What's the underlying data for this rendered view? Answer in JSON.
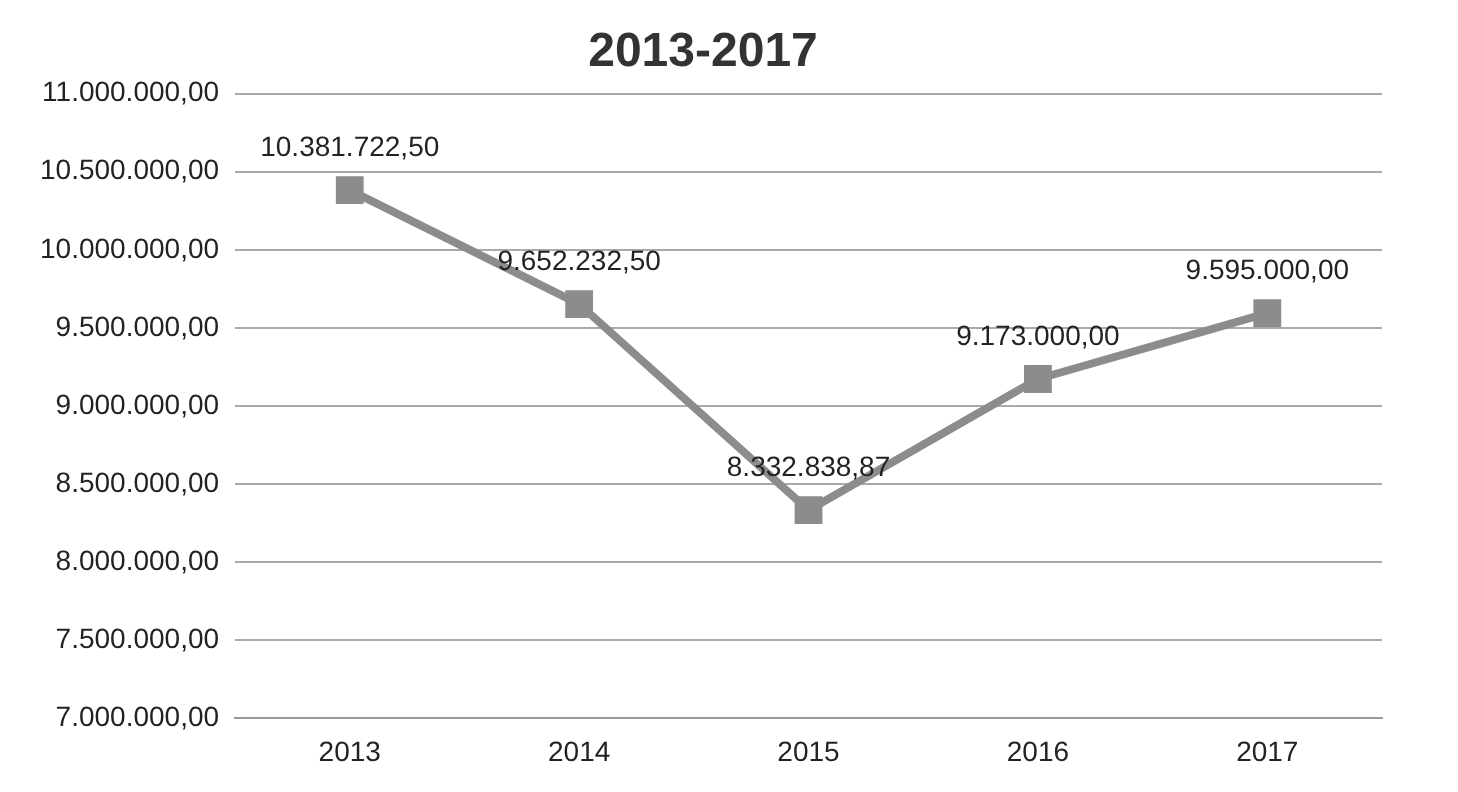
{
  "chart_data": {
    "type": "line",
    "title": "2013-2017",
    "categories": [
      "2013",
      "2014",
      "2015",
      "2016",
      "2017"
    ],
    "series": [
      {
        "color": "#8c8c8c",
        "values": [
          10381722.5,
          9652232.5,
          8332838.87,
          9173000.0,
          9595000.0
        ],
        "value_labels": [
          "10.381.722,50",
          "9.652.232,50",
          "8.332.838,87",
          "9.173.000,00",
          "9.595.000,00"
        ]
      }
    ],
    "ylim": [
      7000000,
      11000000
    ],
    "yticks": [
      {
        "value": 7000000,
        "label": "7.000.000,00"
      },
      {
        "value": 7500000,
        "label": "7.500.000,00"
      },
      {
        "value": 8000000,
        "label": "8.000.000,00"
      },
      {
        "value": 8500000,
        "label": "8.500.000,00"
      },
      {
        "value": 9000000,
        "label": "9.000.000,00"
      },
      {
        "value": 9500000,
        "label": "9.500.000,00"
      },
      {
        "value": 10000000,
        "label": "10.000.000,00"
      },
      {
        "value": 10500000,
        "label": "10.500.000,00"
      },
      {
        "value": 11000000,
        "label": "11.000.000,00"
      }
    ],
    "grid": "y",
    "legend": false,
    "marker": "square",
    "line_style": "solid"
  }
}
